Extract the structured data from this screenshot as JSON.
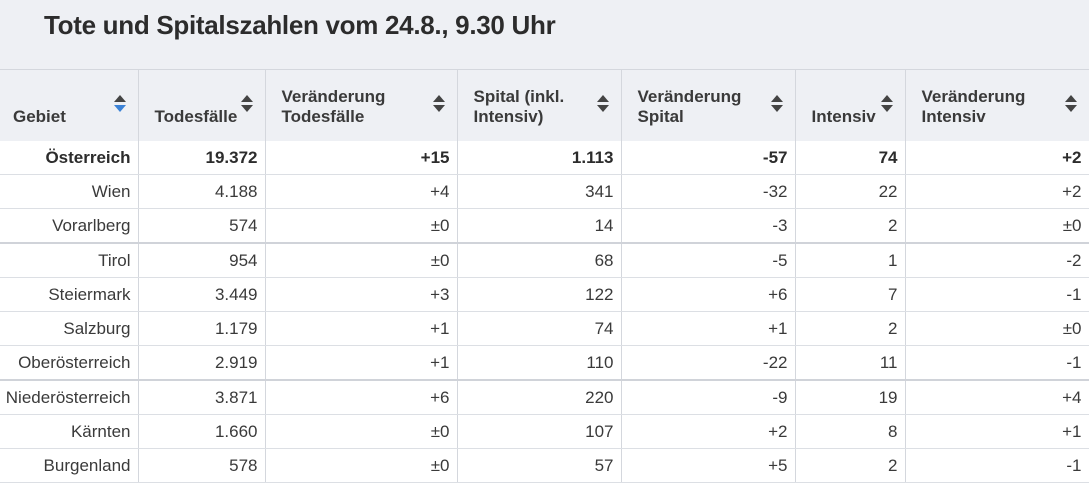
{
  "title": "Tote und Spitalszahlen vom 24.8., 9.30 Uhr",
  "columns": [
    {
      "line1": "Gebiet",
      "line2": "",
      "icon": "sort-icon"
    },
    {
      "line1": "Todesfälle",
      "line2": "",
      "icon": "sort-icon"
    },
    {
      "line1": "Veränderung",
      "line2": "Todesfälle",
      "icon": "sort-icon"
    },
    {
      "line1": "Spital (inkl.",
      "line2": "Intensiv)",
      "icon": "sort-icon"
    },
    {
      "line1": "Veränderung",
      "line2": "Spital",
      "icon": "sort-icon"
    },
    {
      "line1": "Intensiv",
      "line2": "",
      "icon": "sort-icon"
    },
    {
      "line1": "Veränderung",
      "line2": "Intensiv",
      "icon": "sort-icon"
    }
  ],
  "active_sort_color": "#3b82d6",
  "rows": [
    [
      "Österreich",
      "19.372",
      "+15",
      "1.113",
      "-57",
      "74",
      "+2"
    ],
    [
      "Wien",
      "4.188",
      "+4",
      "341",
      "-32",
      "22",
      "+2"
    ],
    [
      "Vorarlberg",
      "574",
      "±0",
      "14",
      "-3",
      "2",
      "±0"
    ],
    [
      "Tirol",
      "954",
      "±0",
      "68",
      "-5",
      "1",
      "-2"
    ],
    [
      "Steiermark",
      "3.449",
      "+3",
      "122",
      "+6",
      "7",
      "-1"
    ],
    [
      "Salzburg",
      "1.179",
      "+1",
      "74",
      "+1",
      "2",
      "±0"
    ],
    [
      "Oberösterreich",
      "2.919",
      "+1",
      "110",
      "-22",
      "11",
      "-1"
    ],
    [
      "Niederösterreich",
      "3.871",
      "+6",
      "220",
      "-9",
      "19",
      "+4"
    ],
    [
      "Kärnten",
      "1.660",
      "±0",
      "107",
      "+2",
      "8",
      "+1"
    ],
    [
      "Burgenland",
      "578",
      "±0",
      "57",
      "+5",
      "2",
      "-1"
    ]
  ]
}
